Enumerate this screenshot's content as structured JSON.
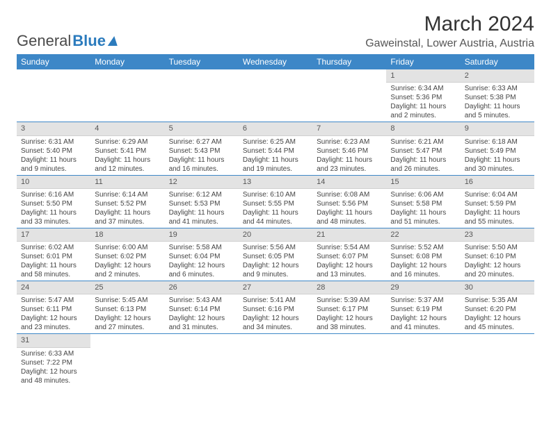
{
  "logo": {
    "part1": "General",
    "part2": "Blue"
  },
  "title": "March 2024",
  "location": "Gaweinstal, Lower Austria, Austria",
  "weekdays": [
    "Sunday",
    "Monday",
    "Tuesday",
    "Wednesday",
    "Thursday",
    "Friday",
    "Saturday"
  ],
  "style": {
    "header_bg": "#3d87c7",
    "header_fg": "#ffffff",
    "daynum_bg": "#e3e3e3",
    "rule_color": "#3d87c7",
    "text_color": "#444444"
  },
  "weeks": [
    [
      null,
      null,
      null,
      null,
      null,
      {
        "n": "1",
        "sr": "Sunrise: 6:34 AM",
        "ss": "Sunset: 5:36 PM",
        "dl1": "Daylight: 11 hours",
        "dl2": "and 2 minutes."
      },
      {
        "n": "2",
        "sr": "Sunrise: 6:33 AM",
        "ss": "Sunset: 5:38 PM",
        "dl1": "Daylight: 11 hours",
        "dl2": "and 5 minutes."
      }
    ],
    [
      {
        "n": "3",
        "sr": "Sunrise: 6:31 AM",
        "ss": "Sunset: 5:40 PM",
        "dl1": "Daylight: 11 hours",
        "dl2": "and 9 minutes."
      },
      {
        "n": "4",
        "sr": "Sunrise: 6:29 AM",
        "ss": "Sunset: 5:41 PM",
        "dl1": "Daylight: 11 hours",
        "dl2": "and 12 minutes."
      },
      {
        "n": "5",
        "sr": "Sunrise: 6:27 AM",
        "ss": "Sunset: 5:43 PM",
        "dl1": "Daylight: 11 hours",
        "dl2": "and 16 minutes."
      },
      {
        "n": "6",
        "sr": "Sunrise: 6:25 AM",
        "ss": "Sunset: 5:44 PM",
        "dl1": "Daylight: 11 hours",
        "dl2": "and 19 minutes."
      },
      {
        "n": "7",
        "sr": "Sunrise: 6:23 AM",
        "ss": "Sunset: 5:46 PM",
        "dl1": "Daylight: 11 hours",
        "dl2": "and 23 minutes."
      },
      {
        "n": "8",
        "sr": "Sunrise: 6:21 AM",
        "ss": "Sunset: 5:47 PM",
        "dl1": "Daylight: 11 hours",
        "dl2": "and 26 minutes."
      },
      {
        "n": "9",
        "sr": "Sunrise: 6:18 AM",
        "ss": "Sunset: 5:49 PM",
        "dl1": "Daylight: 11 hours",
        "dl2": "and 30 minutes."
      }
    ],
    [
      {
        "n": "10",
        "sr": "Sunrise: 6:16 AM",
        "ss": "Sunset: 5:50 PM",
        "dl1": "Daylight: 11 hours",
        "dl2": "and 33 minutes."
      },
      {
        "n": "11",
        "sr": "Sunrise: 6:14 AM",
        "ss": "Sunset: 5:52 PM",
        "dl1": "Daylight: 11 hours",
        "dl2": "and 37 minutes."
      },
      {
        "n": "12",
        "sr": "Sunrise: 6:12 AM",
        "ss": "Sunset: 5:53 PM",
        "dl1": "Daylight: 11 hours",
        "dl2": "and 41 minutes."
      },
      {
        "n": "13",
        "sr": "Sunrise: 6:10 AM",
        "ss": "Sunset: 5:55 PM",
        "dl1": "Daylight: 11 hours",
        "dl2": "and 44 minutes."
      },
      {
        "n": "14",
        "sr": "Sunrise: 6:08 AM",
        "ss": "Sunset: 5:56 PM",
        "dl1": "Daylight: 11 hours",
        "dl2": "and 48 minutes."
      },
      {
        "n": "15",
        "sr": "Sunrise: 6:06 AM",
        "ss": "Sunset: 5:58 PM",
        "dl1": "Daylight: 11 hours",
        "dl2": "and 51 minutes."
      },
      {
        "n": "16",
        "sr": "Sunrise: 6:04 AM",
        "ss": "Sunset: 5:59 PM",
        "dl1": "Daylight: 11 hours",
        "dl2": "and 55 minutes."
      }
    ],
    [
      {
        "n": "17",
        "sr": "Sunrise: 6:02 AM",
        "ss": "Sunset: 6:01 PM",
        "dl1": "Daylight: 11 hours",
        "dl2": "and 58 minutes."
      },
      {
        "n": "18",
        "sr": "Sunrise: 6:00 AM",
        "ss": "Sunset: 6:02 PM",
        "dl1": "Daylight: 12 hours",
        "dl2": "and 2 minutes."
      },
      {
        "n": "19",
        "sr": "Sunrise: 5:58 AM",
        "ss": "Sunset: 6:04 PM",
        "dl1": "Daylight: 12 hours",
        "dl2": "and 6 minutes."
      },
      {
        "n": "20",
        "sr": "Sunrise: 5:56 AM",
        "ss": "Sunset: 6:05 PM",
        "dl1": "Daylight: 12 hours",
        "dl2": "and 9 minutes."
      },
      {
        "n": "21",
        "sr": "Sunrise: 5:54 AM",
        "ss": "Sunset: 6:07 PM",
        "dl1": "Daylight: 12 hours",
        "dl2": "and 13 minutes."
      },
      {
        "n": "22",
        "sr": "Sunrise: 5:52 AM",
        "ss": "Sunset: 6:08 PM",
        "dl1": "Daylight: 12 hours",
        "dl2": "and 16 minutes."
      },
      {
        "n": "23",
        "sr": "Sunrise: 5:50 AM",
        "ss": "Sunset: 6:10 PM",
        "dl1": "Daylight: 12 hours",
        "dl2": "and 20 minutes."
      }
    ],
    [
      {
        "n": "24",
        "sr": "Sunrise: 5:47 AM",
        "ss": "Sunset: 6:11 PM",
        "dl1": "Daylight: 12 hours",
        "dl2": "and 23 minutes."
      },
      {
        "n": "25",
        "sr": "Sunrise: 5:45 AM",
        "ss": "Sunset: 6:13 PM",
        "dl1": "Daylight: 12 hours",
        "dl2": "and 27 minutes."
      },
      {
        "n": "26",
        "sr": "Sunrise: 5:43 AM",
        "ss": "Sunset: 6:14 PM",
        "dl1": "Daylight: 12 hours",
        "dl2": "and 31 minutes."
      },
      {
        "n": "27",
        "sr": "Sunrise: 5:41 AM",
        "ss": "Sunset: 6:16 PM",
        "dl1": "Daylight: 12 hours",
        "dl2": "and 34 minutes."
      },
      {
        "n": "28",
        "sr": "Sunrise: 5:39 AM",
        "ss": "Sunset: 6:17 PM",
        "dl1": "Daylight: 12 hours",
        "dl2": "and 38 minutes."
      },
      {
        "n": "29",
        "sr": "Sunrise: 5:37 AM",
        "ss": "Sunset: 6:19 PM",
        "dl1": "Daylight: 12 hours",
        "dl2": "and 41 minutes."
      },
      {
        "n": "30",
        "sr": "Sunrise: 5:35 AM",
        "ss": "Sunset: 6:20 PM",
        "dl1": "Daylight: 12 hours",
        "dl2": "and 45 minutes."
      }
    ],
    [
      {
        "n": "31",
        "sr": "Sunrise: 6:33 AM",
        "ss": "Sunset: 7:22 PM",
        "dl1": "Daylight: 12 hours",
        "dl2": "and 48 minutes."
      },
      null,
      null,
      null,
      null,
      null,
      null
    ]
  ]
}
